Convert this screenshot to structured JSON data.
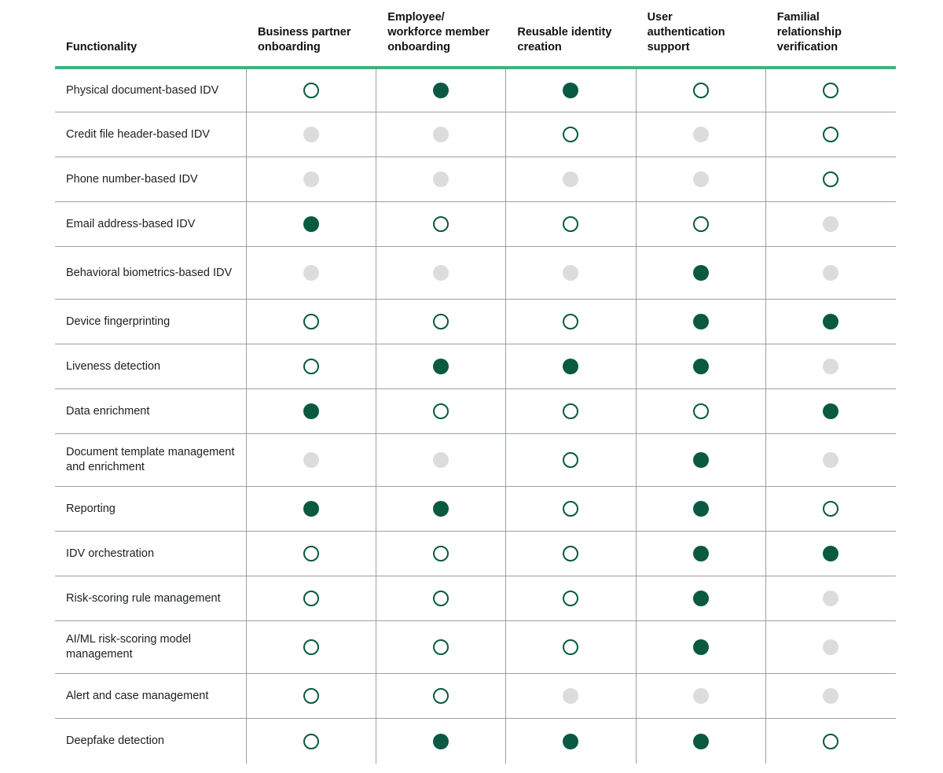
{
  "columns": [
    "Functionality",
    "Business partner\nonboarding",
    "Employee/\nworkforce member\nonboarding",
    "Reusable identity\ncreation",
    "User\nauthentication\nsupport",
    "Familial\nrelationship\nverification"
  ],
  "colors": {
    "full": "#0a5a42",
    "empty_outline": "#0a5a42",
    "none": "#dcdcdc",
    "header_rule": "#3fb27f"
  },
  "legend_states": [
    "full",
    "empty",
    "none"
  ],
  "rows": [
    {
      "label": "Physical document-based IDV",
      "values": [
        "empty",
        "full",
        "full",
        "empty",
        "empty"
      ]
    },
    {
      "label": "Credit file header-based IDV",
      "values": [
        "none",
        "none",
        "empty",
        "none",
        "empty"
      ]
    },
    {
      "label": "Phone number-based IDV",
      "values": [
        "none",
        "none",
        "none",
        "none",
        "empty"
      ]
    },
    {
      "label": "Email address-based IDV",
      "values": [
        "full",
        "empty",
        "empty",
        "empty",
        "none"
      ]
    },
    {
      "label": "Behavioral biometrics-based IDV",
      "values": [
        "none",
        "none",
        "none",
        "full",
        "none"
      ]
    },
    {
      "label": "Device fingerprinting",
      "values": [
        "empty",
        "empty",
        "empty",
        "full",
        "full"
      ]
    },
    {
      "label": "Liveness detection",
      "values": [
        "empty",
        "full",
        "full",
        "full",
        "none"
      ]
    },
    {
      "label": "Data enrichment",
      "values": [
        "full",
        "empty",
        "empty",
        "empty",
        "full"
      ]
    },
    {
      "label": "Document template management and enrichment",
      "values": [
        "none",
        "none",
        "empty",
        "full",
        "none"
      ]
    },
    {
      "label": "Reporting",
      "values": [
        "full",
        "full",
        "empty",
        "full",
        "empty"
      ]
    },
    {
      "label": "IDV orchestration",
      "values": [
        "empty",
        "empty",
        "empty",
        "full",
        "full"
      ]
    },
    {
      "label": "Risk-scoring rule management",
      "values": [
        "empty",
        "empty",
        "empty",
        "full",
        "none"
      ]
    },
    {
      "label": "AI/ML risk-scoring model management",
      "values": [
        "empty",
        "empty",
        "empty",
        "full",
        "none"
      ]
    },
    {
      "label": "Alert and case management",
      "values": [
        "empty",
        "empty",
        "none",
        "none",
        "none"
      ]
    },
    {
      "label": "Deepfake detection",
      "values": [
        "empty",
        "full",
        "full",
        "full",
        "empty"
      ]
    }
  ]
}
